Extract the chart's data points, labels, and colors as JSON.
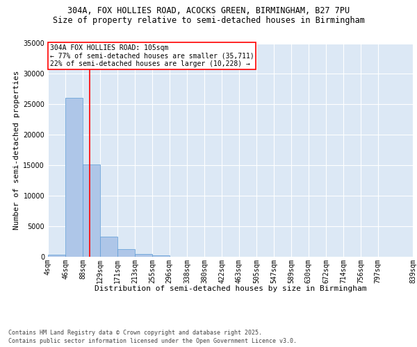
{
  "title_line1": "304A, FOX HOLLIES ROAD, ACOCKS GREEN, BIRMINGHAM, B27 7PU",
  "title_line2": "Size of property relative to semi-detached houses in Birmingham",
  "xlabel": "Distribution of semi-detached houses by size in Birmingham",
  "ylabel": "Number of semi-detached properties",
  "footer_line1": "Contains HM Land Registry data © Crown copyright and database right 2025.",
  "footer_line2": "Contains public sector information licensed under the Open Government Licence v3.0.",
  "property_label": "304A FOX HOLLIES ROAD: 105sqm",
  "smaller_label": "← 77% of semi-detached houses are smaller (35,711)",
  "larger_label": "22% of semi-detached houses are larger (10,228) →",
  "property_size": 105,
  "bar_left_edges": [
    4,
    46,
    88,
    129,
    171,
    213,
    255,
    296,
    338,
    380,
    422,
    463,
    505,
    547,
    589,
    630,
    672,
    714,
    756,
    797
  ],
  "bar_widths": [
    42,
    42,
    41,
    42,
    42,
    42,
    41,
    42,
    42,
    42,
    41,
    42,
    42,
    42,
    41,
    42,
    42,
    42,
    41,
    42
  ],
  "bar_heights": [
    350,
    26100,
    15100,
    3250,
    1200,
    450,
    250,
    0,
    0,
    0,
    0,
    0,
    0,
    0,
    0,
    0,
    0,
    0,
    0,
    0
  ],
  "bar_color": "#aec6e8",
  "bar_edge_color": "#5b9bd5",
  "vline_x": 105,
  "vline_color": "red",
  "ylim": [
    0,
    35000
  ],
  "yticks": [
    0,
    5000,
    10000,
    15000,
    20000,
    25000,
    30000,
    35000
  ],
  "x_tick_labels": [
    "4sqm",
    "46sqm",
    "88sqm",
    "129sqm",
    "171sqm",
    "213sqm",
    "255sqm",
    "296sqm",
    "338sqm",
    "380sqm",
    "422sqm",
    "463sqm",
    "505sqm",
    "547sqm",
    "589sqm",
    "630sqm",
    "672sqm",
    "714sqm",
    "756sqm",
    "797sqm",
    "839sqm"
  ],
  "background_color": "#dce8f5",
  "grid_color": "white",
  "title_fontsize": 8.5,
  "subtitle_fontsize": 8.5,
  "axis_label_fontsize": 8,
  "tick_fontsize": 7,
  "annotation_fontsize": 7,
  "footer_fontsize": 6
}
